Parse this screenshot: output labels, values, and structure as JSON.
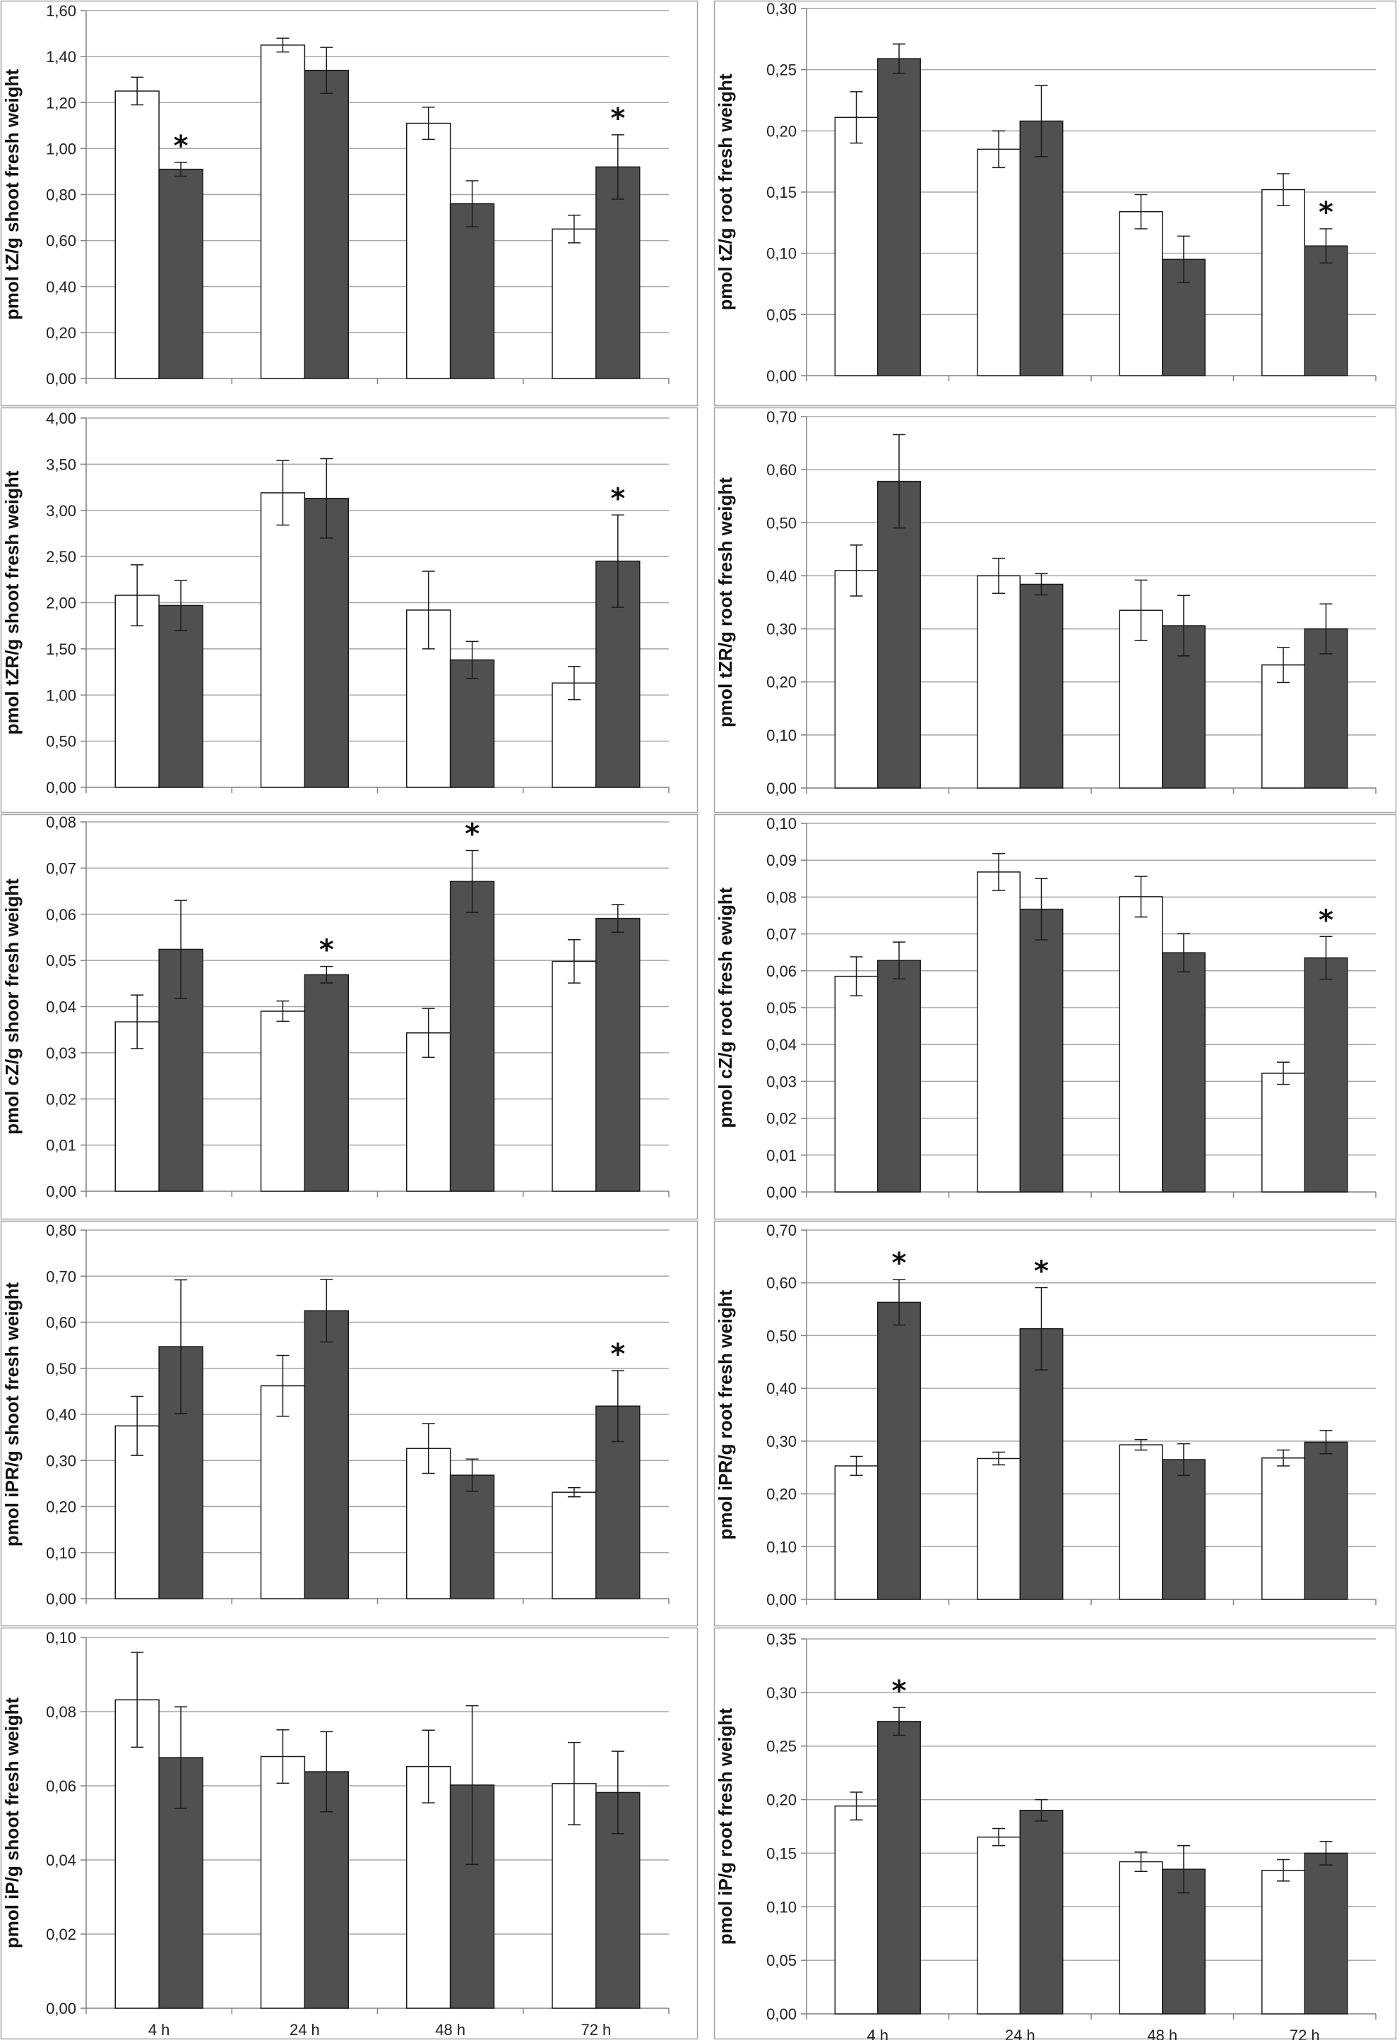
{
  "x_categories": [
    "4 h",
    "24 h",
    "48 h",
    "72 h"
  ],
  "colors": {
    "control": "#ffffff",
    "treated": "#505050",
    "stroke": "#1a1a1a",
    "grid": "#a6a6a6",
    "frame": "#a6a6a6"
  },
  "chart_data": [
    {
      "type": "bar",
      "ylabel": "pmol tZ/g shoot fresh weight",
      "ylim": [
        0,
        1.6
      ],
      "ystep": 0.2,
      "decimals": 2,
      "categories": [
        "4 h",
        "24 h",
        "48 h",
        "72 h"
      ],
      "series": [
        {
          "values": [
            1.25,
            1.45,
            1.11,
            0.65
          ],
          "errors": [
            0.06,
            0.03,
            0.07,
            0.06
          ]
        },
        {
          "values": [
            0.91,
            1.34,
            0.76,
            0.92
          ],
          "errors": [
            0.03,
            0.1,
            0.1,
            0.14
          ]
        }
      ],
      "significant": [
        0,
        3
      ],
      "annotation": "*"
    },
    {
      "type": "bar",
      "ylabel": "pmol tZ/g root fresh weight",
      "ylim": [
        0,
        0.3
      ],
      "ystep": 0.05,
      "decimals": 2,
      "categories": [
        "4 h",
        "24 h",
        "48 h",
        "72 h"
      ],
      "series": [
        {
          "values": [
            0.211,
            0.185,
            0.134,
            0.152
          ],
          "errors": [
            0.021,
            0.015,
            0.014,
            0.013
          ]
        },
        {
          "values": [
            0.259,
            0.208,
            0.095,
            0.106
          ],
          "errors": [
            0.012,
            0.029,
            0.019,
            0.014
          ]
        }
      ],
      "significant": [
        3
      ],
      "annotation": "*"
    },
    {
      "type": "bar",
      "ylabel": "pmol tZR/g shoot fresh weight",
      "ylim": [
        0,
        4.0
      ],
      "ystep": 0.5,
      "decimals": 2,
      "categories": [
        "4 h",
        "24 h",
        "48 h",
        "72 h"
      ],
      "series": [
        {
          "values": [
            2.08,
            3.19,
            1.92,
            1.13
          ],
          "errors": [
            0.33,
            0.35,
            0.42,
            0.18
          ]
        },
        {
          "values": [
            1.97,
            3.13,
            1.38,
            2.45
          ],
          "errors": [
            0.27,
            0.43,
            0.2,
            0.5
          ]
        }
      ],
      "significant": [
        3
      ],
      "annotation": "*"
    },
    {
      "type": "bar",
      "ylabel": "pmol tZR/g root fresh weight",
      "ylim": [
        0,
        0.7
      ],
      "ystep": 0.1,
      "decimals": 2,
      "categories": [
        "4 h",
        "24 h",
        "48 h",
        "72 h"
      ],
      "series": [
        {
          "values": [
            0.41,
            0.4,
            0.335,
            0.232
          ],
          "errors": [
            0.048,
            0.033,
            0.057,
            0.033
          ]
        },
        {
          "values": [
            0.578,
            0.384,
            0.306,
            0.3
          ],
          "errors": [
            0.088,
            0.02,
            0.057,
            0.047
          ]
        }
      ],
      "significant": [],
      "annotation": "*"
    },
    {
      "type": "bar",
      "ylabel": "pmol cZ/g shoor fresh weight",
      "ylim": [
        0,
        0.08
      ],
      "ystep": 0.01,
      "decimals": 2,
      "categories": [
        "4 h",
        "24 h",
        "48 h",
        "72 h"
      ],
      "series": [
        {
          "values": [
            0.0367,
            0.039,
            0.0343,
            0.0498
          ],
          "errors": [
            0.0058,
            0.0022,
            0.0053,
            0.0047
          ]
        },
        {
          "values": [
            0.0524,
            0.0469,
            0.0671,
            0.0591
          ],
          "errors": [
            0.0106,
            0.0018,
            0.0067,
            0.003
          ]
        }
      ],
      "significant": [
        1,
        2
      ],
      "annotation": "*"
    },
    {
      "type": "bar",
      "ylabel": "pmol cZ/g root fresh ewight",
      "ylim": [
        0,
        0.1
      ],
      "ystep": 0.01,
      "decimals": 2,
      "categories": [
        "4 h",
        "24 h",
        "48 h",
        "72 h"
      ],
      "series": [
        {
          "values": [
            0.0585,
            0.0868,
            0.0801,
            0.0322
          ],
          "errors": [
            0.0053,
            0.005,
            0.0055,
            0.003
          ]
        },
        {
          "values": [
            0.0628,
            0.0767,
            0.0649,
            0.0635
          ],
          "errors": [
            0.005,
            0.0083,
            0.0052,
            0.0058
          ]
        }
      ],
      "significant": [
        3
      ],
      "annotation": "*"
    },
    {
      "type": "bar",
      "ylabel": "pmol iPR/g shoot fresh weight",
      "ylim": [
        0,
        0.8
      ],
      "ystep": 0.1,
      "decimals": 2,
      "categories": [
        "4 h",
        "24 h",
        "48 h",
        "72 h"
      ],
      "series": [
        {
          "values": [
            0.375,
            0.462,
            0.326,
            0.231
          ],
          "errors": [
            0.064,
            0.066,
            0.054,
            0.01
          ]
        },
        {
          "values": [
            0.547,
            0.625,
            0.268,
            0.418
          ],
          "errors": [
            0.145,
            0.068,
            0.035,
            0.077
          ]
        }
      ],
      "significant": [
        3
      ],
      "annotation": "*"
    },
    {
      "type": "bar",
      "ylabel": "pmol iPR/g root fresh weight",
      "ylim": [
        0,
        0.7
      ],
      "ystep": 0.1,
      "decimals": 2,
      "categories": [
        "4 h",
        "24 h",
        "48 h",
        "72 h"
      ],
      "series": [
        {
          "values": [
            0.253,
            0.267,
            0.293,
            0.268
          ],
          "errors": [
            0.018,
            0.012,
            0.01,
            0.015
          ]
        },
        {
          "values": [
            0.563,
            0.513,
            0.265,
            0.298
          ],
          "errors": [
            0.043,
            0.078,
            0.03,
            0.022
          ]
        }
      ],
      "significant": [
        0,
        1
      ],
      "annotation": "*"
    },
    {
      "type": "bar",
      "ylabel": "pmol iP/g shoot fresh weight",
      "ylim": [
        0,
        0.1
      ],
      "ystep": 0.02,
      "decimals": 2,
      "categories": [
        "4 h",
        "24 h",
        "48 h",
        "72 h"
      ],
      "series": [
        {
          "values": [
            0.0832,
            0.0679,
            0.0652,
            0.0606
          ],
          "errors": [
            0.0128,
            0.0072,
            0.0098,
            0.0111
          ]
        },
        {
          "values": [
            0.0676,
            0.0638,
            0.0602,
            0.0582
          ],
          "errors": [
            0.0137,
            0.0108,
            0.0214,
            0.0111
          ]
        }
      ],
      "significant": [],
      "annotation": "*"
    },
    {
      "type": "bar",
      "ylabel": "pmol iP/g root fresh weight",
      "ylim": [
        0,
        0.35
      ],
      "ystep": 0.05,
      "decimals": 2,
      "categories": [
        "4 h",
        "24 h",
        "48 h",
        "72 h"
      ],
      "series": [
        {
          "values": [
            0.194,
            0.165,
            0.142,
            0.134
          ],
          "errors": [
            0.013,
            0.008,
            0.009,
            0.01
          ]
        },
        {
          "values": [
            0.273,
            0.19,
            0.135,
            0.15
          ],
          "errors": [
            0.013,
            0.01,
            0.022,
            0.011
          ]
        }
      ],
      "significant": [
        0
      ],
      "annotation": "*"
    }
  ]
}
